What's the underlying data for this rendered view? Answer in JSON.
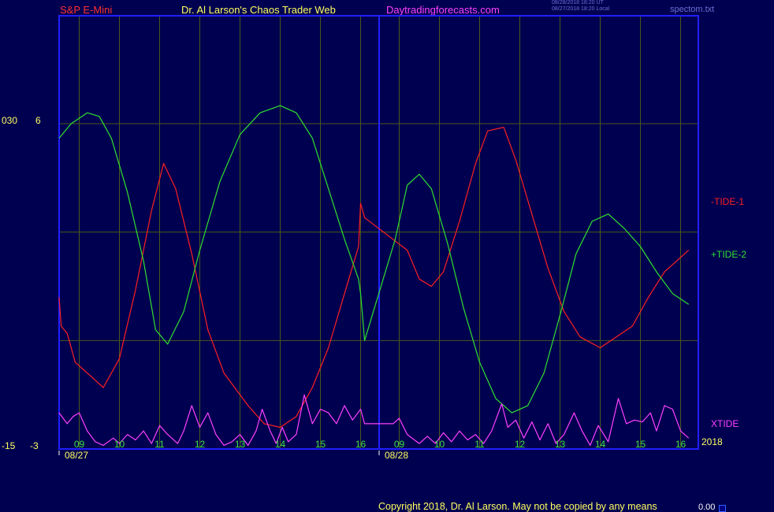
{
  "header": {
    "instrument": "S&P E-Mini",
    "brand": "Dr. Al Larson's Chaos Trader Web",
    "site": "Daytradingforecasts.com",
    "timestamp_1": "08/28/2018 18:20 UT",
    "timestamp_2": "08/27/2018 18:20 Local",
    "filename": "spectom.txt"
  },
  "left_axis": {
    "top_outer": "030",
    "top_inner": "6",
    "bottom_outer": "-15",
    "bottom_inner": "-3"
  },
  "year_label": "2018",
  "footer": {
    "copyright": "Copyright 2018, Dr. Al Larson. May not be copied by any means",
    "value": "0.00"
  },
  "colors": {
    "background": "#000050",
    "frame": "#2020ff",
    "grid": "#4a5a1a",
    "tide1": "#ff2020",
    "tide2": "#30e030",
    "xtide": "#ff40ff",
    "header_red": "#ff3030",
    "header_yellow": "#ffff60",
    "header_magenta": "#ff40ff",
    "axis_text": "#ffff60",
    "tick_green": "#40e040"
  },
  "chart_data": {
    "type": "line",
    "x_unit": "hour",
    "days": [
      "08/27",
      "08/28"
    ],
    "hour_ticks": [
      {
        "day": 0,
        "hour": 9,
        "label": "09"
      },
      {
        "day": 0,
        "hour": 10,
        "label": "10"
      },
      {
        "day": 0,
        "hour": 11,
        "label": "11"
      },
      {
        "day": 0,
        "hour": 12,
        "label": "12"
      },
      {
        "day": 0,
        "hour": 13,
        "label": "13"
      },
      {
        "day": 0,
        "hour": 14,
        "label": "14"
      },
      {
        "day": 0,
        "hour": 15,
        "label": "15"
      },
      {
        "day": 0,
        "hour": 16,
        "label": "16"
      },
      {
        "day": 1,
        "hour": 9,
        "label": "09"
      },
      {
        "day": 1,
        "hour": 10,
        "label": "10"
      },
      {
        "day": 1,
        "hour": 11,
        "label": "11"
      },
      {
        "day": 1,
        "hour": 12,
        "label": "12"
      },
      {
        "day": 1,
        "hour": 13,
        "label": "13"
      },
      {
        "day": 1,
        "hour": 14,
        "label": "14"
      },
      {
        "day": 1,
        "hour": 15,
        "label": "15"
      },
      {
        "day": 1,
        "hour": 16,
        "label": "16"
      }
    ],
    "y_left_outer": [
      -15,
      30
    ],
    "y_left_inner": [
      -3,
      6
    ],
    "series": [
      {
        "name": "-TIDE-1",
        "color": "#ff2020",
        "points": [
          {
            "d": 0,
            "h": 8.5,
            "v": 1.2
          },
          {
            "d": 0,
            "h": 8.55,
            "v": 0.4
          },
          {
            "d": 0,
            "h": 8.7,
            "v": 0.2
          },
          {
            "d": 0,
            "h": 8.9,
            "v": -0.6
          },
          {
            "d": 0,
            "h": 9.2,
            "v": -0.9
          },
          {
            "d": 0,
            "h": 9.6,
            "v": -1.3
          },
          {
            "d": 0,
            "h": 10.0,
            "v": -0.5
          },
          {
            "d": 0,
            "h": 10.4,
            "v": 1.4
          },
          {
            "d": 0,
            "h": 10.8,
            "v": 3.6
          },
          {
            "d": 0,
            "h": 11.1,
            "v": 4.9
          },
          {
            "d": 0,
            "h": 11.4,
            "v": 4.2
          },
          {
            "d": 0,
            "h": 11.8,
            "v": 2.4
          },
          {
            "d": 0,
            "h": 12.2,
            "v": 0.3
          },
          {
            "d": 0,
            "h": 12.6,
            "v": -0.9
          },
          {
            "d": 0,
            "h": 13.2,
            "v": -1.8
          },
          {
            "d": 0,
            "h": 13.6,
            "v": -2.3
          },
          {
            "d": 0,
            "h": 14.0,
            "v": -2.4
          },
          {
            "d": 0,
            "h": 14.4,
            "v": -2.1
          },
          {
            "d": 0,
            "h": 14.8,
            "v": -1.3
          },
          {
            "d": 0,
            "h": 15.2,
            "v": -0.2
          },
          {
            "d": 0,
            "h": 15.6,
            "v": 1.3
          },
          {
            "d": 0,
            "h": 15.95,
            "v": 2.6
          },
          {
            "d": 0,
            "h": 16.0,
            "v": 3.8
          },
          {
            "d": 0,
            "h": 16.1,
            "v": 3.4
          },
          {
            "d": 1,
            "h": 9.2,
            "v": 2.5
          },
          {
            "d": 1,
            "h": 9.5,
            "v": 1.7
          },
          {
            "d": 1,
            "h": 9.8,
            "v": 1.5
          },
          {
            "d": 1,
            "h": 10.1,
            "v": 1.9
          },
          {
            "d": 1,
            "h": 10.5,
            "v": 3.3
          },
          {
            "d": 1,
            "h": 10.9,
            "v": 4.9
          },
          {
            "d": 1,
            "h": 11.2,
            "v": 5.8
          },
          {
            "d": 1,
            "h": 11.6,
            "v": 5.9
          },
          {
            "d": 1,
            "h": 11.9,
            "v": 5.0
          },
          {
            "d": 1,
            "h": 12.3,
            "v": 3.5
          },
          {
            "d": 1,
            "h": 12.7,
            "v": 2.0
          },
          {
            "d": 1,
            "h": 13.1,
            "v": 0.8
          },
          {
            "d": 1,
            "h": 13.5,
            "v": 0.1
          },
          {
            "d": 1,
            "h": 14.0,
            "v": -0.2
          },
          {
            "d": 1,
            "h": 14.4,
            "v": 0.1
          },
          {
            "d": 1,
            "h": 14.8,
            "v": 0.4
          },
          {
            "d": 1,
            "h": 15.2,
            "v": 1.2
          },
          {
            "d": 1,
            "h": 15.6,
            "v": 1.9
          },
          {
            "d": 1,
            "h": 16.0,
            "v": 2.3
          },
          {
            "d": 1,
            "h": 16.2,
            "v": 2.5
          }
        ]
      },
      {
        "name": "+TIDE-2",
        "color": "#30e030",
        "points": [
          {
            "d": 0,
            "h": 8.5,
            "v": 5.6
          },
          {
            "d": 0,
            "h": 8.8,
            "v": 6.0
          },
          {
            "d": 0,
            "h": 9.2,
            "v": 6.3
          },
          {
            "d": 0,
            "h": 9.5,
            "v": 6.2
          },
          {
            "d": 0,
            "h": 9.8,
            "v": 5.6
          },
          {
            "d": 0,
            "h": 10.2,
            "v": 4.1
          },
          {
            "d": 0,
            "h": 10.6,
            "v": 2.2
          },
          {
            "d": 0,
            "h": 10.9,
            "v": 0.3
          },
          {
            "d": 0,
            "h": 11.2,
            "v": -0.1
          },
          {
            "d": 0,
            "h": 11.6,
            "v": 0.8
          },
          {
            "d": 0,
            "h": 12.0,
            "v": 2.5
          },
          {
            "d": 0,
            "h": 12.5,
            "v": 4.4
          },
          {
            "d": 0,
            "h": 13.0,
            "v": 5.7
          },
          {
            "d": 0,
            "h": 13.5,
            "v": 6.3
          },
          {
            "d": 0,
            "h": 14.0,
            "v": 6.5
          },
          {
            "d": 0,
            "h": 14.4,
            "v": 6.3
          },
          {
            "d": 0,
            "h": 14.8,
            "v": 5.6
          },
          {
            "d": 0,
            "h": 15.2,
            "v": 4.2
          },
          {
            "d": 0,
            "h": 15.6,
            "v": 2.8
          },
          {
            "d": 0,
            "h": 15.95,
            "v": 1.7
          },
          {
            "d": 0,
            "h": 16.0,
            "v": 1.3
          },
          {
            "d": 0,
            "h": 16.1,
            "v": 0.0
          },
          {
            "d": 1,
            "h": 8.9,
            "v": 2.8
          },
          {
            "d": 1,
            "h": 9.2,
            "v": 4.3
          },
          {
            "d": 1,
            "h": 9.5,
            "v": 4.6
          },
          {
            "d": 1,
            "h": 9.8,
            "v": 4.2
          },
          {
            "d": 1,
            "h": 10.2,
            "v": 2.7
          },
          {
            "d": 1,
            "h": 10.6,
            "v": 0.9
          },
          {
            "d": 1,
            "h": 11.0,
            "v": -0.6
          },
          {
            "d": 1,
            "h": 11.4,
            "v": -1.6
          },
          {
            "d": 1,
            "h": 11.8,
            "v": -2.0
          },
          {
            "d": 1,
            "h": 12.2,
            "v": -1.8
          },
          {
            "d": 1,
            "h": 12.6,
            "v": -0.9
          },
          {
            "d": 1,
            "h": 13.0,
            "v": 0.7
          },
          {
            "d": 1,
            "h": 13.4,
            "v": 2.4
          },
          {
            "d": 1,
            "h": 13.8,
            "v": 3.3
          },
          {
            "d": 1,
            "h": 14.2,
            "v": 3.5
          },
          {
            "d": 1,
            "h": 14.6,
            "v": 3.1
          },
          {
            "d": 1,
            "h": 15.0,
            "v": 2.6
          },
          {
            "d": 1,
            "h": 15.4,
            "v": 1.9
          },
          {
            "d": 1,
            "h": 15.8,
            "v": 1.3
          },
          {
            "d": 1,
            "h": 16.2,
            "v": 1.0
          }
        ]
      },
      {
        "name": "XTIDE",
        "color": "#ff40ff",
        "points": [
          {
            "d": 0,
            "h": 8.5,
            "v": -2.0
          },
          {
            "d": 0,
            "h": 8.7,
            "v": -2.3
          },
          {
            "d": 0,
            "h": 8.85,
            "v": -2.1
          },
          {
            "d": 0,
            "h": 9.0,
            "v": -2.0
          },
          {
            "d": 0,
            "h": 9.2,
            "v": -2.5
          },
          {
            "d": 0,
            "h": 9.4,
            "v": -2.8
          },
          {
            "d": 0,
            "h": 9.6,
            "v": -2.9
          },
          {
            "d": 0,
            "h": 9.85,
            "v": -2.7
          },
          {
            "d": 0,
            "h": 10.0,
            "v": -2.85
          },
          {
            "d": 0,
            "h": 10.2,
            "v": -2.6
          },
          {
            "d": 0,
            "h": 10.4,
            "v": -2.75
          },
          {
            "d": 0,
            "h": 10.6,
            "v": -2.5
          },
          {
            "d": 0,
            "h": 10.8,
            "v": -2.85
          },
          {
            "d": 0,
            "h": 11.0,
            "v": -2.35
          },
          {
            "d": 0,
            "h": 11.2,
            "v": -2.6
          },
          {
            "d": 0,
            "h": 11.45,
            "v": -2.85
          },
          {
            "d": 0,
            "h": 11.6,
            "v": -2.5
          },
          {
            "d": 0,
            "h": 11.8,
            "v": -1.8
          },
          {
            "d": 0,
            "h": 12.0,
            "v": -2.4
          },
          {
            "d": 0,
            "h": 12.2,
            "v": -2.0
          },
          {
            "d": 0,
            "h": 12.4,
            "v": -2.6
          },
          {
            "d": 0,
            "h": 12.6,
            "v": -2.9
          },
          {
            "d": 0,
            "h": 12.8,
            "v": -2.8
          },
          {
            "d": 0,
            "h": 13.0,
            "v": -2.6
          },
          {
            "d": 0,
            "h": 13.2,
            "v": -2.9
          },
          {
            "d": 0,
            "h": 13.4,
            "v": -2.5
          },
          {
            "d": 0,
            "h": 13.55,
            "v": -1.9
          },
          {
            "d": 0,
            "h": 13.75,
            "v": -2.5
          },
          {
            "d": 0,
            "h": 13.9,
            "v": -2.85
          },
          {
            "d": 0,
            "h": 14.05,
            "v": -2.4
          },
          {
            "d": 0,
            "h": 14.2,
            "v": -2.8
          },
          {
            "d": 0,
            "h": 14.4,
            "v": -2.6
          },
          {
            "d": 0,
            "h": 14.6,
            "v": -1.5
          },
          {
            "d": 0,
            "h": 14.8,
            "v": -2.3
          },
          {
            "d": 0,
            "h": 15.0,
            "v": -1.9
          },
          {
            "d": 0,
            "h": 15.2,
            "v": -2.0
          },
          {
            "d": 0,
            "h": 15.4,
            "v": -2.3
          },
          {
            "d": 0,
            "h": 15.6,
            "v": -1.8
          },
          {
            "d": 0,
            "h": 15.8,
            "v": -2.2
          },
          {
            "d": 0,
            "h": 16.0,
            "v": -1.9
          },
          {
            "d": 0,
            "h": 16.1,
            "v": -2.3
          },
          {
            "d": 1,
            "h": 8.85,
            "v": -2.3
          },
          {
            "d": 1,
            "h": 9.0,
            "v": -2.15
          },
          {
            "d": 1,
            "h": 9.2,
            "v": -2.6
          },
          {
            "d": 1,
            "h": 9.5,
            "v": -2.85
          },
          {
            "d": 1,
            "h": 9.7,
            "v": -2.65
          },
          {
            "d": 1,
            "h": 9.9,
            "v": -2.85
          },
          {
            "d": 1,
            "h": 10.1,
            "v": -2.55
          },
          {
            "d": 1,
            "h": 10.3,
            "v": -2.8
          },
          {
            "d": 1,
            "h": 10.5,
            "v": -2.5
          },
          {
            "d": 1,
            "h": 10.7,
            "v": -2.75
          },
          {
            "d": 1,
            "h": 10.9,
            "v": -2.6
          },
          {
            "d": 1,
            "h": 11.1,
            "v": -2.85
          },
          {
            "d": 1,
            "h": 11.3,
            "v": -2.5
          },
          {
            "d": 1,
            "h": 11.55,
            "v": -1.75
          },
          {
            "d": 1,
            "h": 11.7,
            "v": -2.4
          },
          {
            "d": 1,
            "h": 11.9,
            "v": -2.2
          },
          {
            "d": 1,
            "h": 12.1,
            "v": -2.7
          },
          {
            "d": 1,
            "h": 12.3,
            "v": -2.25
          },
          {
            "d": 1,
            "h": 12.5,
            "v": -2.75
          },
          {
            "d": 1,
            "h": 12.7,
            "v": -2.3
          },
          {
            "d": 1,
            "h": 12.9,
            "v": -2.85
          },
          {
            "d": 1,
            "h": 13.1,
            "v": -2.6
          },
          {
            "d": 1,
            "h": 13.35,
            "v": -2.0
          },
          {
            "d": 1,
            "h": 13.55,
            "v": -2.5
          },
          {
            "d": 1,
            "h": 13.75,
            "v": -2.9
          },
          {
            "d": 1,
            "h": 13.95,
            "v": -2.35
          },
          {
            "d": 1,
            "h": 14.2,
            "v": -2.8
          },
          {
            "d": 1,
            "h": 14.45,
            "v": -1.6
          },
          {
            "d": 1,
            "h": 14.65,
            "v": -2.3
          },
          {
            "d": 1,
            "h": 14.85,
            "v": -2.2
          },
          {
            "d": 1,
            "h": 15.05,
            "v": -2.25
          },
          {
            "d": 1,
            "h": 15.25,
            "v": -2.0
          },
          {
            "d": 1,
            "h": 15.4,
            "v": -2.5
          },
          {
            "d": 1,
            "h": 15.6,
            "v": -1.8
          },
          {
            "d": 1,
            "h": 15.8,
            "v": -1.9
          },
          {
            "d": 1,
            "h": 16.0,
            "v": -2.5
          },
          {
            "d": 1,
            "h": 16.2,
            "v": -2.7
          }
        ]
      }
    ]
  }
}
